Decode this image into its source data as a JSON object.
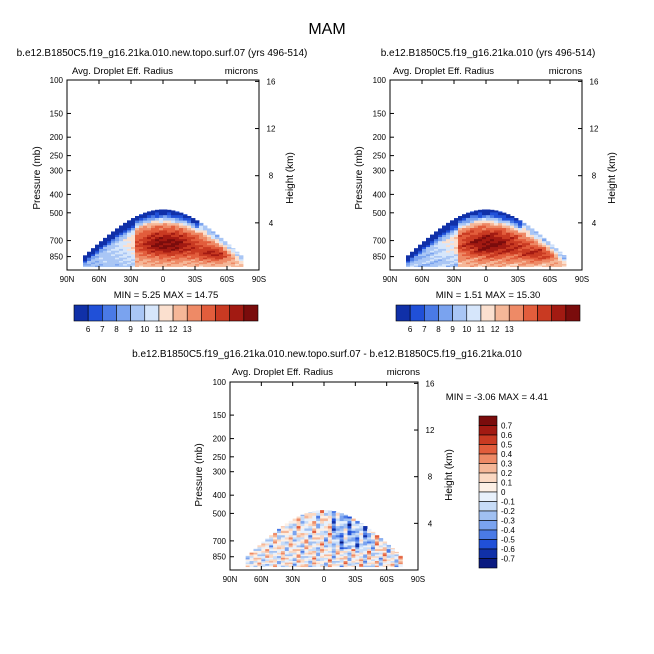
{
  "figure_title": "MAM",
  "chart_data": [
    {
      "type": "heatmap",
      "title": "b.e12.B1850C5.f19_g16.21ka.010.new.topo.surf.07 (yrs 496-514)",
      "left_string": "Avg. Droplet Eff. Radius",
      "right_string": "microns",
      "ylabel": "Pressure (mb)",
      "ylabel_right": "Height (km)",
      "x_ticks": [
        "90N",
        "60N",
        "30N",
        "0",
        "30S",
        "60S",
        "90S"
      ],
      "y_ticks": [
        "100",
        "150",
        "200",
        "250",
        "300",
        "400",
        "500",
        "700",
        "850"
      ],
      "height_ticks": [
        "4",
        "8",
        "12",
        "16"
      ],
      "stats": "MIN =  5.25  MAX = 14.75",
      "colorbar_labels": [
        "6",
        "7",
        "8",
        "9",
        "10",
        "11",
        "12",
        "13"
      ],
      "colorbar_colors": [
        "#1030a8",
        "#2050d8",
        "#4a7ae6",
        "#7aa3ef",
        "#a9c6f5",
        "#d6e6fb",
        "#fbe0cf",
        "#f5b798",
        "#ee8a66",
        "#e25d3c",
        "#c93a22",
        "#a21a12",
        "#7a0c0c"
      ]
    },
    {
      "type": "heatmap",
      "title": "b.e12.B1850C5.f19_g16.21ka.010 (yrs 496-514)",
      "left_string": "Avg. Droplet Eff. Radius",
      "right_string": "microns",
      "ylabel": "Pressure (mb)",
      "ylabel_right": "Height (km)",
      "x_ticks": [
        "90N",
        "60N",
        "30N",
        "0",
        "30S",
        "60S",
        "90S"
      ],
      "y_ticks": [
        "100",
        "150",
        "200",
        "250",
        "300",
        "400",
        "500",
        "700",
        "850"
      ],
      "height_ticks": [
        "4",
        "8",
        "12",
        "16"
      ],
      "stats": "MIN =  1.51  MAX = 15.30",
      "colorbar_labels": [
        "6",
        "7",
        "8",
        "9",
        "10",
        "11",
        "12",
        "13"
      ],
      "colorbar_colors": [
        "#1030a8",
        "#2050d8",
        "#4a7ae6",
        "#7aa3ef",
        "#a9c6f5",
        "#d6e6fb",
        "#fbe0cf",
        "#f5b798",
        "#ee8a66",
        "#e25d3c",
        "#c93a22",
        "#a21a12",
        "#7a0c0c"
      ]
    },
    {
      "type": "heatmap",
      "title": "b.e12.B1850C5.f19_g16.21ka.010.new.topo.surf.07 - b.e12.B1850C5.f19_g16.21ka.010",
      "left_string": "Avg. Droplet Eff. Radius",
      "right_string": "microns",
      "ylabel": "Pressure (mb)",
      "ylabel_right": "Height (km)",
      "x_ticks": [
        "90N",
        "60N",
        "30N",
        "0",
        "30S",
        "60S",
        "90S"
      ],
      "y_ticks": [
        "100",
        "150",
        "200",
        "250",
        "300",
        "400",
        "500",
        "700",
        "850"
      ],
      "height_ticks": [
        "4",
        "8",
        "12",
        "16"
      ],
      "stats": "MIN = -3.06  MAX =  4.41",
      "colorbar_labels": [
        "0.7",
        "0.6",
        "0.5",
        "0.4",
        "0.3",
        "0.2",
        "0.1",
        "0",
        "-0.1",
        "-0.2",
        "-0.3",
        "-0.4",
        "-0.5",
        "-0.6",
        "-0.7"
      ],
      "colorbar_colors": [
        "#7a0c0c",
        "#a21a12",
        "#c93a22",
        "#e25d3c",
        "#ee8a66",
        "#f5b798",
        "#fbd8c2",
        "#fdf0e6",
        "#e8f1fc",
        "#c7dcf8",
        "#a0c0f2",
        "#7aa3ef",
        "#4a7ae6",
        "#2050d8",
        "#1030a8",
        "#0a1a80"
      ]
    }
  ]
}
